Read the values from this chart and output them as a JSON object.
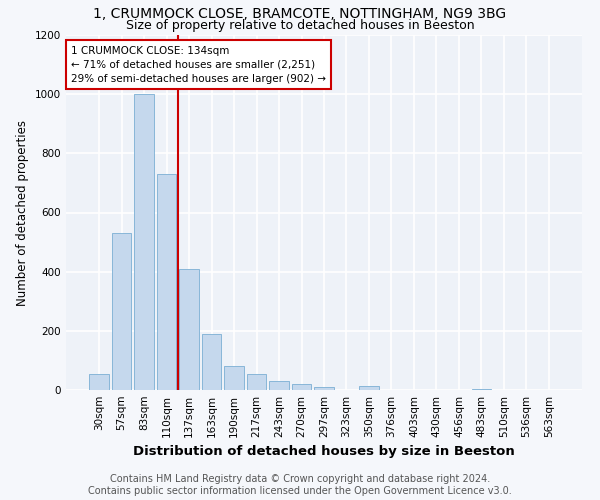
{
  "title": "1, CRUMMOCK CLOSE, BRAMCOTE, NOTTINGHAM, NG9 3BG",
  "subtitle": "Size of property relative to detached houses in Beeston",
  "xlabel": "Distribution of detached houses by size in Beeston",
  "ylabel": "Number of detached properties",
  "categories": [
    "30sqm",
    "57sqm",
    "83sqm",
    "110sqm",
    "137sqm",
    "163sqm",
    "190sqm",
    "217sqm",
    "243sqm",
    "270sqm",
    "297sqm",
    "323sqm",
    "350sqm",
    "376sqm",
    "403sqm",
    "430sqm",
    "456sqm",
    "483sqm",
    "510sqm",
    "536sqm",
    "563sqm"
  ],
  "values": [
    55,
    530,
    1000,
    730,
    410,
    190,
    80,
    55,
    30,
    20,
    10,
    0,
    15,
    0,
    0,
    0,
    0,
    5,
    0,
    0,
    0
  ],
  "bar_color": "#c5d8ed",
  "bar_edge_color": "#7bafd4",
  "property_line_label": "1 CRUMMOCK CLOSE: 134sqm",
  "annotation_line1": "← 71% of detached houses are smaller (2,251)",
  "annotation_line2": "29% of semi-detached houses are larger (902) →",
  "annotation_box_color": "#ffffff",
  "annotation_box_edge_color": "#cc0000",
  "vline_color": "#cc0000",
  "ylim": [
    0,
    1200
  ],
  "yticks": [
    0,
    200,
    400,
    600,
    800,
    1000,
    1200
  ],
  "bg_color": "#eef2f8",
  "grid_color": "#ffffff",
  "footer_line1": "Contains HM Land Registry data © Crown copyright and database right 2024.",
  "footer_line2": "Contains public sector information licensed under the Open Government Licence v3.0.",
  "title_fontsize": 10,
  "subtitle_fontsize": 9,
  "xlabel_fontsize": 9.5,
  "ylabel_fontsize": 8.5,
  "tick_fontsize": 7.5,
  "footer_fontsize": 7,
  "fig_bg": "#f5f7fb"
}
